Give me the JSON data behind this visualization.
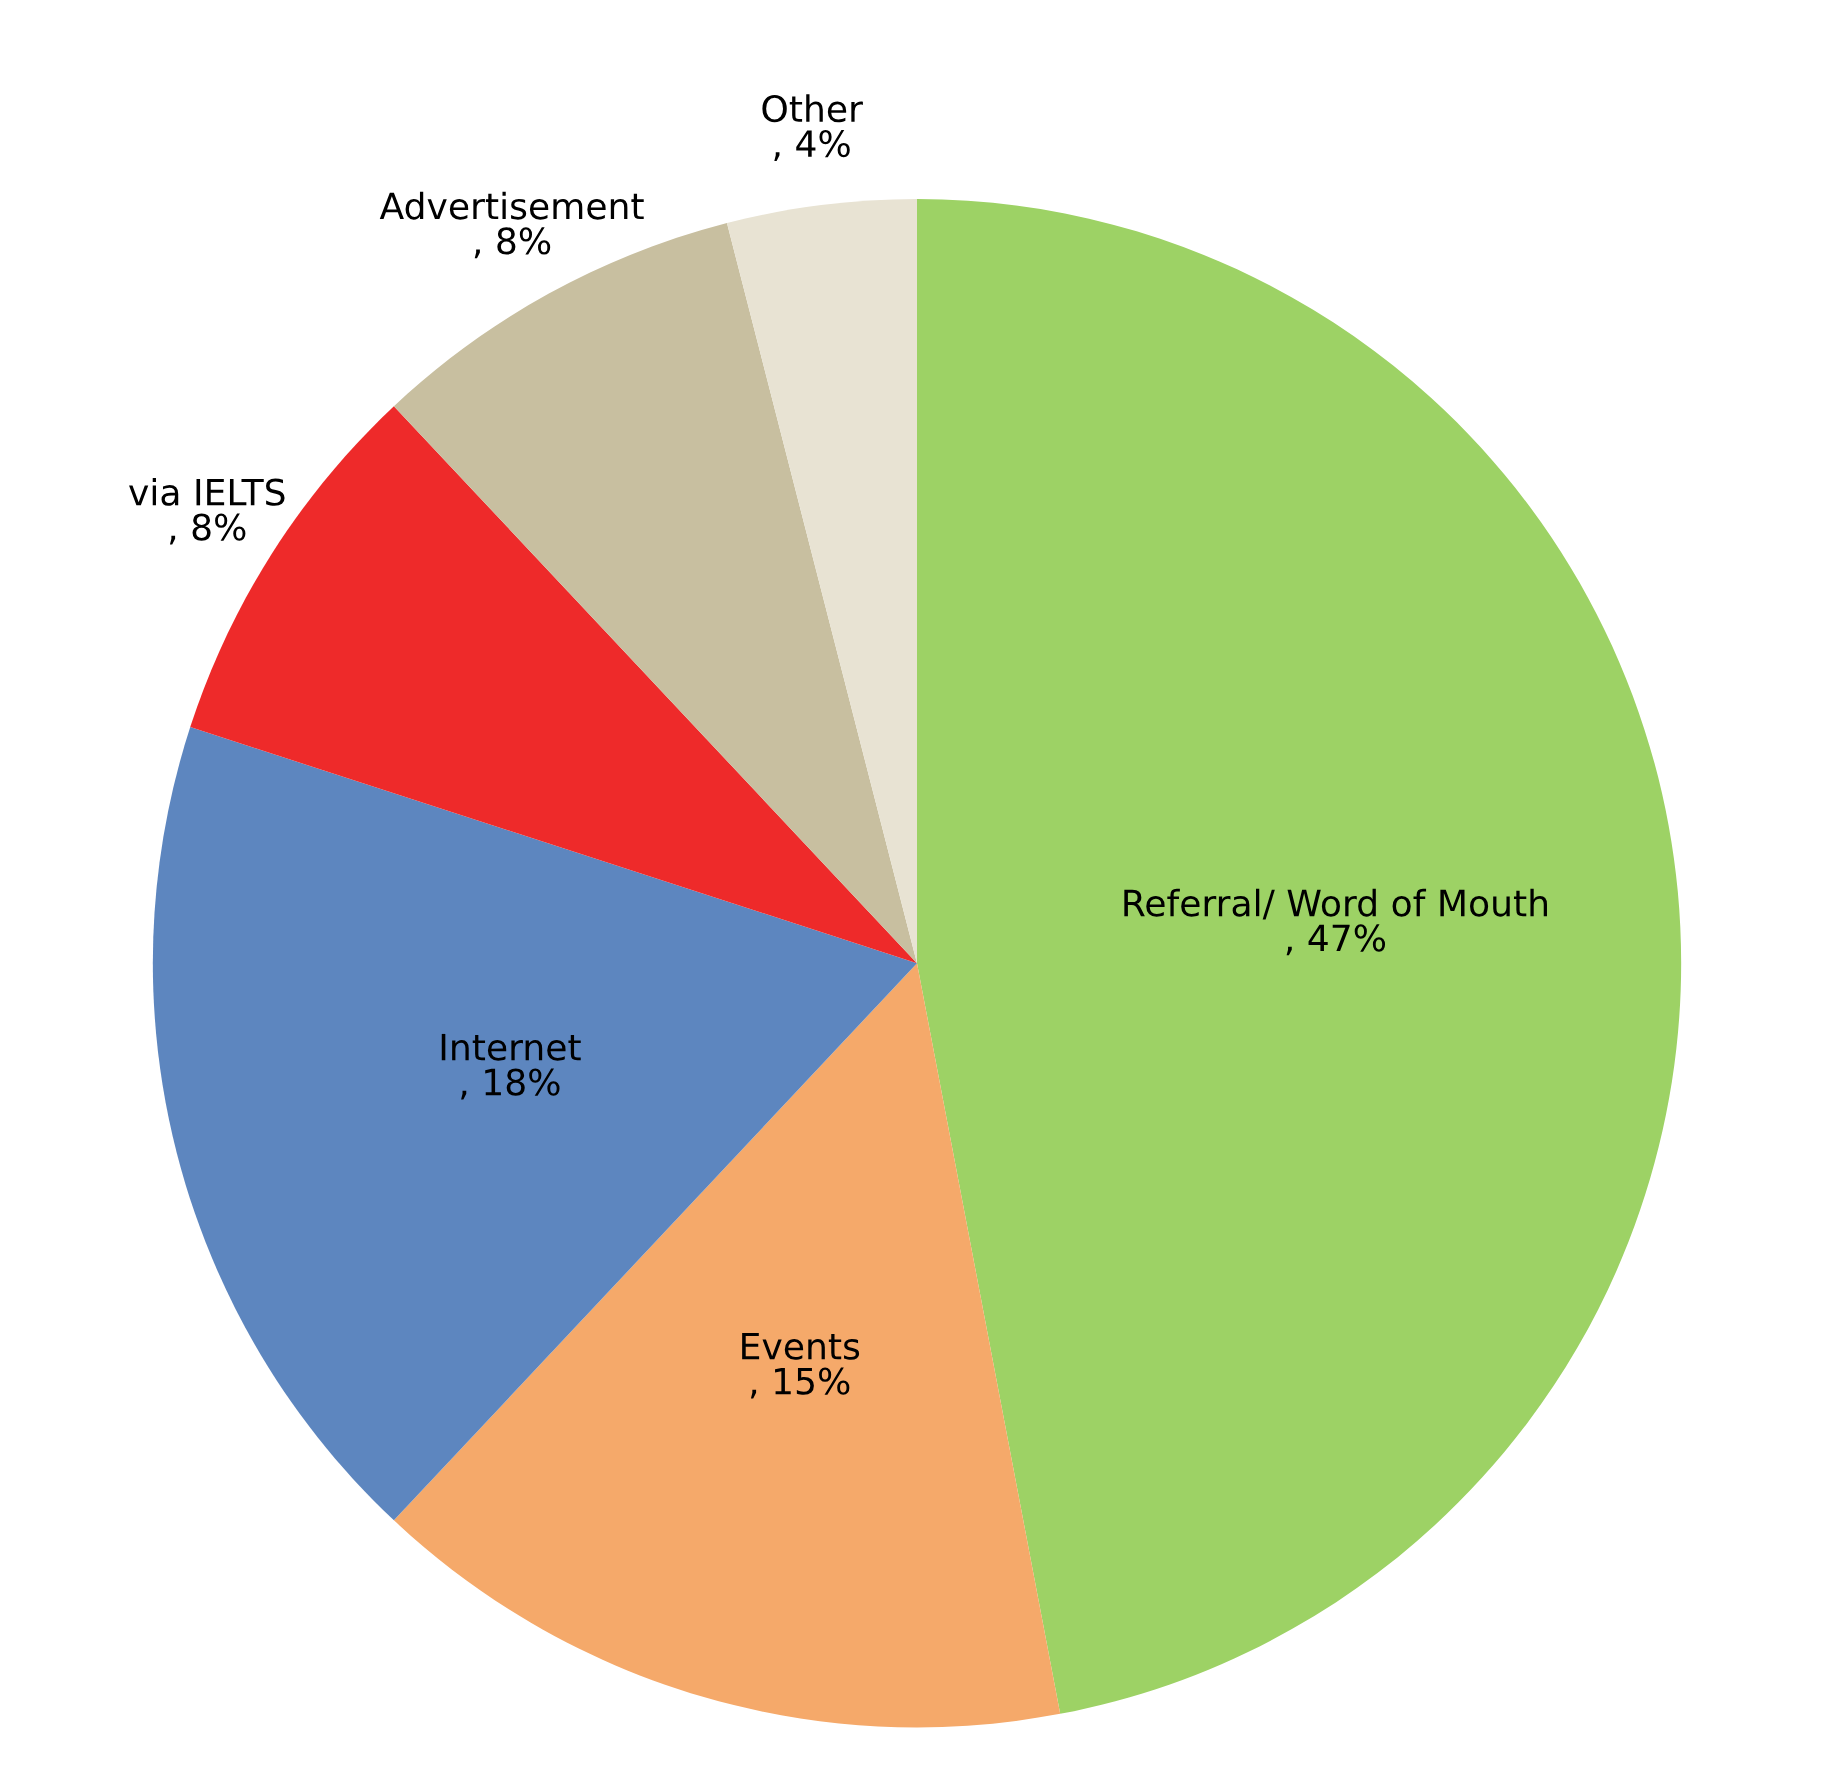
{
  "chart_data": {
    "type": "pie",
    "categories": [
      "Referral/ Word of Mouth",
      "Events",
      "Internet",
      "via IELTS",
      "Advertisement",
      "Other"
    ],
    "values": [
      47,
      15,
      18,
      8,
      8,
      4
    ],
    "value_labels": [
      ", 47%",
      ", 15%",
      ", 18%",
      ", 8%",
      ", 8%",
      ", 4%"
    ],
    "colors": [
      "#9dd265",
      "#f5a96a",
      "#5d86bf",
      "#ee2a2a",
      "#c8bfa0",
      "#e8e3d3"
    ],
    "legend": false
  }
}
